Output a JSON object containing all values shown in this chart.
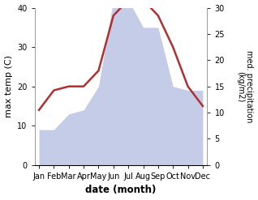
{
  "months": [
    "Jan",
    "Feb",
    "Mar",
    "Apr",
    "May",
    "Jun",
    "Jul",
    "Aug",
    "Sep",
    "Oct",
    "Nov",
    "Dec"
  ],
  "precipitation_left": [
    9,
    9,
    13,
    14,
    20,
    42,
    42,
    35,
    35,
    20,
    19,
    19
  ],
  "max_temp": [
    14,
    19,
    20,
    20,
    24,
    38,
    42,
    42,
    38,
    30,
    20,
    15
  ],
  "precip_fill_color": "#c5cce8",
  "temp_color": "#b03030",
  "ylabel_left": "max temp (C)",
  "ylabel_right": "med. precipitation\n(kg/m2)",
  "xlabel": "date (month)",
  "ylim_left": [
    0,
    40
  ],
  "ylim_right": [
    0,
    30
  ],
  "yticks_left": [
    0,
    10,
    20,
    30,
    40
  ],
  "yticks_right": [
    0,
    5,
    10,
    15,
    20,
    25,
    30
  ],
  "background_color": "#ffffff"
}
